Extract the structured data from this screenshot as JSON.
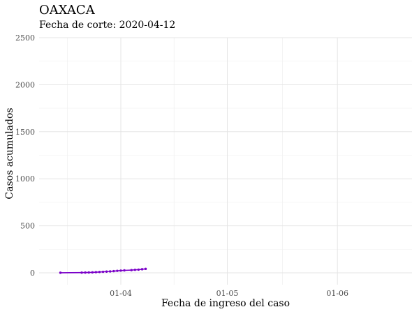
{
  "chart_data": {
    "type": "line",
    "title": "OAXACA",
    "subtitle": "Fecha de corte: 2020-04-12",
    "xlabel": "Fecha de ingreso del caso",
    "ylabel": "Casos acumulados",
    "ylim": [
      0,
      2500
    ],
    "y_ticks": [
      0,
      500,
      1000,
      1500,
      2000,
      2500
    ],
    "y_tick_labels": [
      "0",
      "500",
      "1000",
      "1500",
      "2000",
      "2500"
    ],
    "xlim": [
      "2020-03-09",
      "2020-06-22"
    ],
    "x_ticks": [
      "2020-04-01",
      "2020-05-01",
      "2020-06-01"
    ],
    "x_tick_labels": [
      "01-04",
      "01-05",
      "01-06"
    ],
    "grid": true,
    "line_color": "#7a00c8",
    "series": [
      {
        "x": [
          "2020-03-15",
          "2020-03-21",
          "2020-03-22",
          "2020-03-23",
          "2020-03-24",
          "2020-03-25",
          "2020-03-26",
          "2020-03-27",
          "2020-03-28",
          "2020-03-29",
          "2020-03-30",
          "2020-03-31",
          "2020-04-01",
          "2020-04-02",
          "2020-04-04",
          "2020-04-05",
          "2020-04-06",
          "2020-04-07",
          "2020-04-08"
        ],
        "y": [
          1,
          2,
          3,
          4,
          5,
          7,
          9,
          11,
          13,
          15,
          18,
          21,
          24,
          26,
          29,
          32,
          34,
          38,
          42
        ]
      }
    ]
  }
}
